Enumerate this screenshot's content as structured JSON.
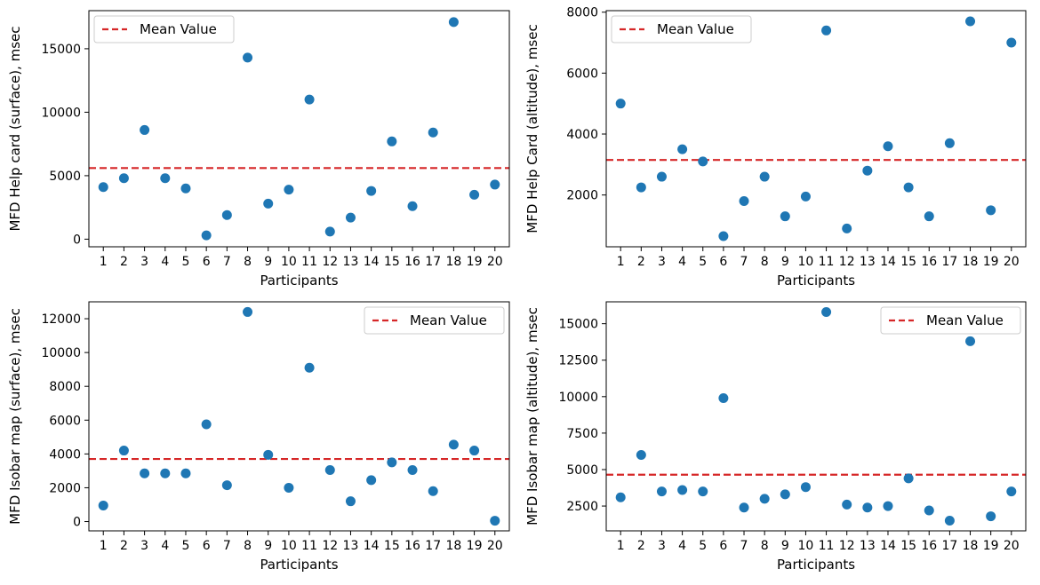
{
  "colors": {
    "point": "#1f77b4",
    "mean_line": "#d62728",
    "axis": "#000000"
  },
  "chart_data": [
    {
      "type": "scatter",
      "title": "",
      "xlabel": "Participants",
      "ylabel": "MFD Help card (surface), msec",
      "x": [
        1,
        2,
        3,
        4,
        5,
        6,
        7,
        8,
        9,
        10,
        11,
        12,
        13,
        14,
        15,
        16,
        17,
        18,
        19,
        20
      ],
      "y": [
        4100,
        4800,
        8600,
        4800,
        4000,
        300,
        1900,
        14300,
        2800,
        3900,
        11000,
        600,
        1700,
        3800,
        7700,
        2600,
        8400,
        17100,
        3500,
        4300
      ],
      "mean": 5600,
      "ylim": [
        -600,
        18000
      ],
      "yticks": [
        0,
        5000,
        10000,
        15000
      ],
      "xlim": [
        0.3,
        20.7
      ],
      "legend": {
        "label": "Mean Value",
        "placement": "top-left"
      }
    },
    {
      "type": "scatter",
      "title": "",
      "xlabel": "Participants",
      "ylabel": "MFD Help Card (altitude), msec",
      "x": [
        1,
        2,
        3,
        4,
        5,
        6,
        7,
        8,
        9,
        10,
        11,
        12,
        13,
        14,
        15,
        16,
        17,
        18,
        19,
        20
      ],
      "y": [
        5000,
        2250,
        2600,
        3500,
        3100,
        650,
        1800,
        2600,
        1300,
        1950,
        7400,
        900,
        2800,
        3600,
        2250,
        1300,
        3700,
        7700,
        1500,
        7000
      ],
      "mean": 3150,
      "ylim": [
        300,
        8050
      ],
      "yticks": [
        2000,
        4000,
        6000,
        8000
      ],
      "xlim": [
        0.3,
        20.7
      ],
      "legend": {
        "label": "Mean Value",
        "placement": "top-left"
      }
    },
    {
      "type": "scatter",
      "title": "",
      "xlabel": "Participants",
      "ylabel": "MFD Isobar map (surface), msec",
      "x": [
        1,
        2,
        3,
        4,
        5,
        6,
        7,
        8,
        9,
        10,
        11,
        12,
        13,
        14,
        15,
        16,
        17,
        18,
        19,
        20
      ],
      "y": [
        950,
        4200,
        2850,
        2850,
        2850,
        5750,
        2150,
        12400,
        3950,
        2000,
        9100,
        3050,
        1200,
        2450,
        3500,
        3050,
        1800,
        4550,
        4200,
        50
      ],
      "mean": 3700,
      "ylim": [
        -550,
        13000
      ],
      "yticks": [
        0,
        2000,
        4000,
        6000,
        8000,
        10000,
        12000
      ],
      "xlim": [
        0.3,
        20.7
      ],
      "legend": {
        "label": "Mean Value",
        "placement": "top-right"
      }
    },
    {
      "type": "scatter",
      "title": "",
      "xlabel": "Participants",
      "ylabel": "MFD Isobar map (altitude), msec",
      "x": [
        1,
        2,
        3,
        4,
        5,
        6,
        7,
        8,
        9,
        10,
        11,
        12,
        13,
        14,
        15,
        16,
        17,
        18,
        19,
        20
      ],
      "y": [
        3100,
        6000,
        3500,
        3600,
        3500,
        9900,
        2400,
        3000,
        3300,
        3800,
        15800,
        2600,
        2400,
        2500,
        4400,
        2200,
        1500,
        13800,
        1800,
        3500
      ],
      "mean": 4650,
      "ylim": [
        800,
        16500
      ],
      "yticks": [
        2500,
        5000,
        7500,
        10000,
        12500,
        15000
      ],
      "xlim": [
        0.3,
        20.7
      ],
      "legend": {
        "label": "Mean Value",
        "placement": "top-right"
      }
    }
  ]
}
